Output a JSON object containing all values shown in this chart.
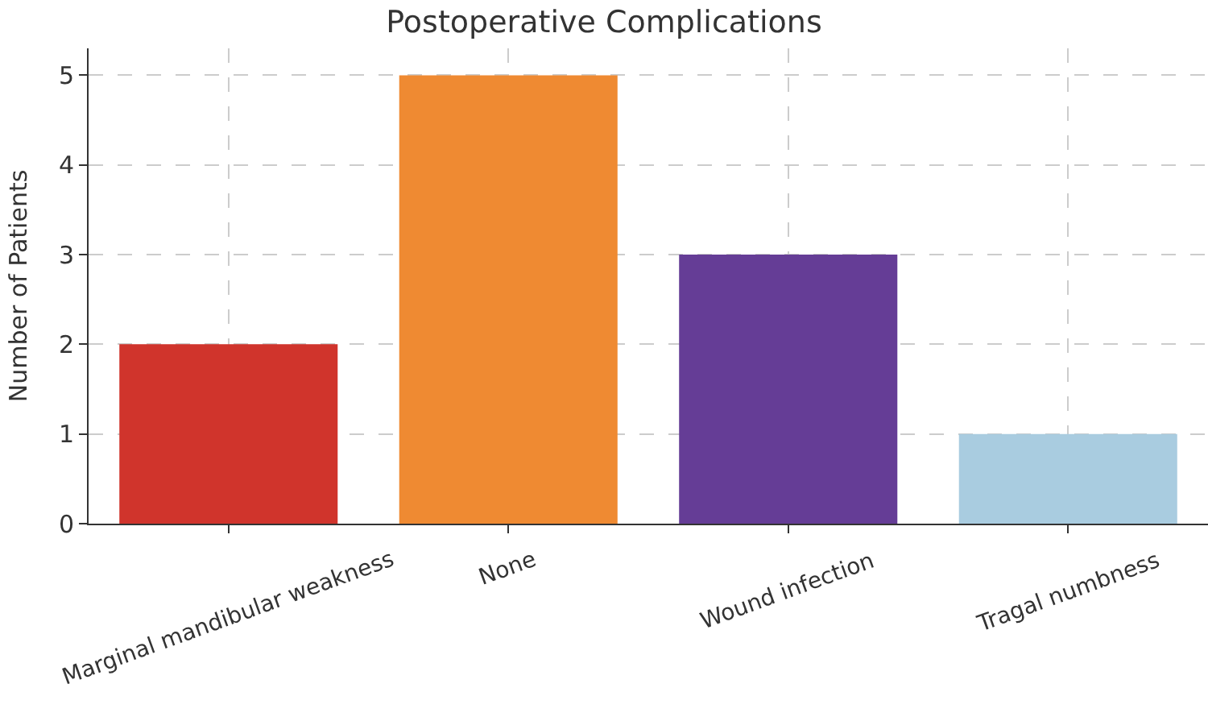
{
  "chart_data": {
    "type": "bar",
    "title": "Postoperative Complications",
    "ylabel": "Number of Patients",
    "categories": [
      "Marginal mandibular weakness",
      "None",
      "Wound infection",
      "Tragal numbness"
    ],
    "values": [
      2,
      5,
      3,
      1
    ],
    "colors": [
      "#d0342c",
      "#ef8a32",
      "#653d96",
      "#a9cce0"
    ],
    "ylim": [
      0,
      5.3
    ],
    "yticks": [
      0,
      1,
      2,
      3,
      4,
      5
    ],
    "grid": true
  }
}
